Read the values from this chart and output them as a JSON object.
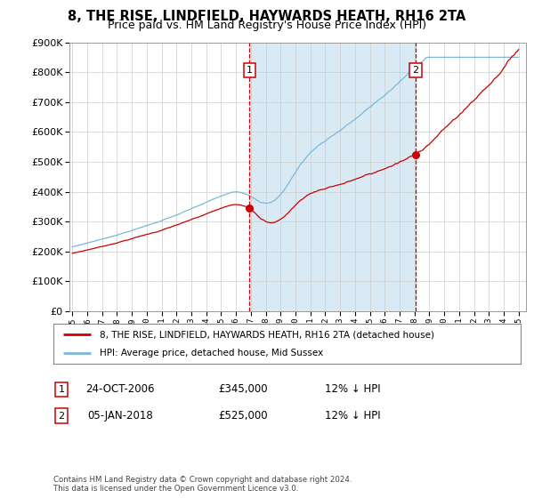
{
  "title": "8, THE RISE, LINDFIELD, HAYWARDS HEATH, RH16 2TA",
  "subtitle": "Price paid vs. HM Land Registry's House Price Index (HPI)",
  "title_fontsize": 10.5,
  "subtitle_fontsize": 9,
  "ylim": [
    0,
    900000
  ],
  "yticks": [
    0,
    100000,
    200000,
    300000,
    400000,
    500000,
    600000,
    700000,
    800000,
    900000
  ],
  "x_start_year": 1995,
  "x_end_year": 2025,
  "hpi_color": "#7ab8d9",
  "price_color": "#cc0000",
  "shade_color": "#daeaf5",
  "vline_color": "#cc0000",
  "idx1": 143,
  "idx2": 277,
  "point1_price": 345000,
  "point2_price": 525000,
  "label1_date": "24-OCT-2006",
  "label2_date": "05-JAN-2018",
  "label1_pct": "12% ↓ HPI",
  "label2_pct": "12% ↓ HPI",
  "legend_line1": "8, THE RISE, LINDFIELD, HAYWARDS HEATH, RH16 2TA (detached house)",
  "legend_line2": "HPI: Average price, detached house, Mid Sussex",
  "footnote": "Contains HM Land Registry data © Crown copyright and database right 2024.\nThis data is licensed under the Open Government Licence v3.0.",
  "background_color": "#ffffff"
}
